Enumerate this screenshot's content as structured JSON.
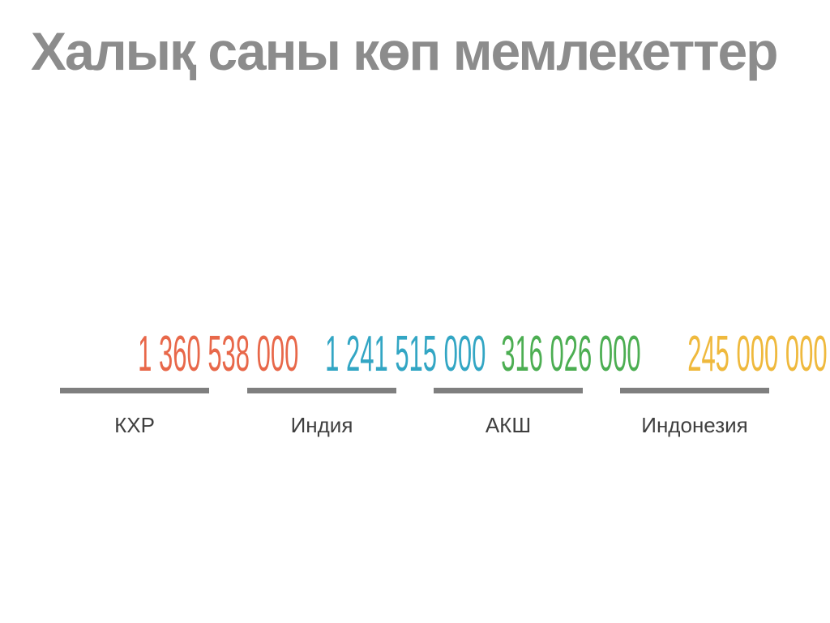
{
  "title": "Халық саны көп мемлекеттер",
  "stats": [
    {
      "value": "1 360 538 000",
      "label": "КХР",
      "color": "#E8684A"
    },
    {
      "value": "1 241 515 000",
      "label": "Индия",
      "color": "#33A6C4"
    },
    {
      "value": "316 026 000",
      "label": "АКШ",
      "color": "#4CAE52"
    },
    {
      "value": "245 000 000",
      "label": "Индонезия",
      "color": "#EFB93D"
    }
  ],
  "colors": {
    "title": "#8C8C8C",
    "underline_bar": "#7F7F7F",
    "label_text": "#3F3F3F",
    "background": "#FFFFFF"
  },
  "chart_data": {
    "type": "table",
    "title": "Халық саны көп мемлекеттер",
    "categories": [
      "КХР",
      "Индия",
      "АКШ",
      "Индонезия"
    ],
    "values": [
      1360538000,
      1241515000,
      316026000,
      245000000
    ],
    "value_labels": [
      "1 360 538 000",
      "1 241 515 000",
      "316 026 000",
      "245 000 000"
    ],
    "series_colors": [
      "#E8684A",
      "#33A6C4",
      "#4CAE52",
      "#EFB93D"
    ],
    "layout": "four stat columns in one row, colored number above gray underline bar above dark label, grid off, no axes"
  }
}
